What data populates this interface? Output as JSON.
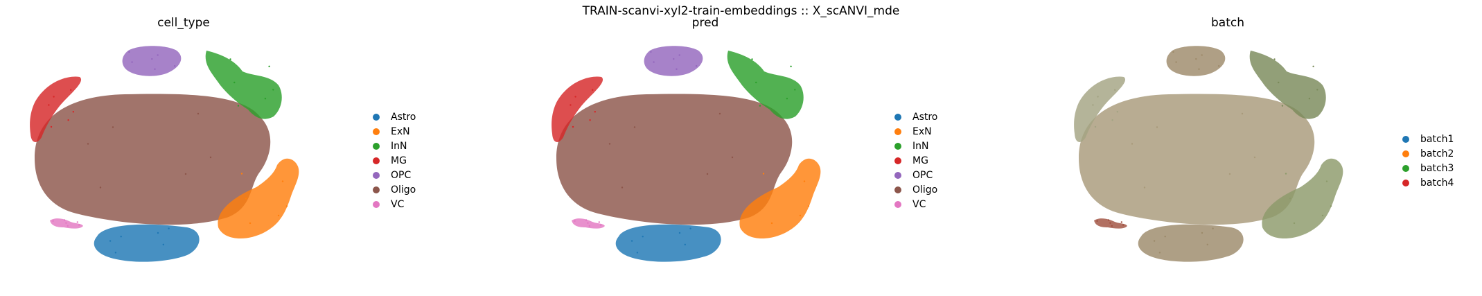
{
  "chart_data": {
    "suptitle": "TRAIN-scanvi-xyl2-train-embeddings :: X_scANVI_mde",
    "panels": [
      {
        "type": "scatter",
        "title": "cell_type",
        "legend": {
          "placement": "right",
          "entries": [
            {
              "name": "Astro",
              "color": "#1f77b4"
            },
            {
              "name": "ExN",
              "color": "#ff7f0e"
            },
            {
              "name": "InN",
              "color": "#2ca02c"
            },
            {
              "name": "MG",
              "color": "#d62728"
            },
            {
              "name": "OPC",
              "color": "#9467bd"
            },
            {
              "name": "Oligo",
              "color": "#8c564b"
            },
            {
              "name": "VC",
              "color": "#e377c2"
            }
          ]
        },
        "clusters": [
          {
            "label": "Oligo",
            "color": "#8c564b",
            "shape": "large-central-blob"
          },
          {
            "label": "Astro",
            "color": "#1f77b4",
            "shape": "bottom-oval"
          },
          {
            "label": "ExN",
            "color": "#ff7f0e",
            "shape": "lower-right-lobes"
          },
          {
            "label": "InN",
            "color": "#2ca02c",
            "shape": "upper-right-lobes"
          },
          {
            "label": "MG",
            "color": "#d62728",
            "shape": "left-crescent"
          },
          {
            "label": "OPC",
            "color": "#9467bd",
            "shape": "top-oval"
          },
          {
            "label": "VC",
            "color": "#e377c2",
            "shape": "small-lower-left"
          }
        ],
        "axes": "off",
        "grid": false
      },
      {
        "type": "scatter",
        "title": "pred",
        "legend": {
          "placement": "right",
          "entries": [
            {
              "name": "Astro",
              "color": "#1f77b4"
            },
            {
              "name": "ExN",
              "color": "#ff7f0e"
            },
            {
              "name": "InN",
              "color": "#2ca02c"
            },
            {
              "name": "MG",
              "color": "#d62728"
            },
            {
              "name": "OPC",
              "color": "#9467bd"
            },
            {
              "name": "Oligo",
              "color": "#8c564b"
            },
            {
              "name": "VC",
              "color": "#e377c2"
            }
          ]
        },
        "clusters": [
          {
            "label": "Oligo",
            "color": "#8c564b",
            "shape": "large-central-blob"
          },
          {
            "label": "Astro",
            "color": "#1f77b4",
            "shape": "bottom-oval"
          },
          {
            "label": "ExN",
            "color": "#ff7f0e",
            "shape": "lower-right-lobes"
          },
          {
            "label": "InN",
            "color": "#2ca02c",
            "shape": "upper-right-lobes"
          },
          {
            "label": "MG",
            "color": "#d62728",
            "shape": "left-crescent"
          },
          {
            "label": "OPC",
            "color": "#9467bd",
            "shape": "top-oval"
          },
          {
            "label": "VC",
            "color": "#e377c2",
            "shape": "small-lower-left"
          }
        ],
        "axes": "off",
        "grid": false
      },
      {
        "type": "scatter",
        "title": "batch",
        "legend": {
          "placement": "right",
          "entries": [
            {
              "name": "batch1",
              "color": "#1f77b4"
            },
            {
              "name": "batch2",
              "color": "#ff7f0e"
            },
            {
              "name": "batch3",
              "color": "#2ca02c"
            },
            {
              "name": "batch4",
              "color": "#d62728"
            }
          ]
        },
        "clusters": [
          {
            "label": "mixed",
            "color": "#a89a7a",
            "shape": "large-central-blob"
          },
          {
            "label": "mixed",
            "color": "#9c8a6a",
            "shape": "bottom-oval"
          },
          {
            "label": "mixed",
            "color": "#8c9a6a",
            "shape": "lower-right-lobes"
          },
          {
            "label": "mixed",
            "color": "#7a8a5a",
            "shape": "upper-right-lobes"
          },
          {
            "label": "mixed",
            "color": "#a3a383",
            "shape": "left-crescent"
          },
          {
            "label": "mixed",
            "color": "#9e8a6a",
            "shape": "top-oval"
          },
          {
            "label": "mixed",
            "color": "#a05040",
            "shape": "small-lower-left"
          }
        ],
        "axes": "off",
        "grid": false
      }
    ]
  }
}
